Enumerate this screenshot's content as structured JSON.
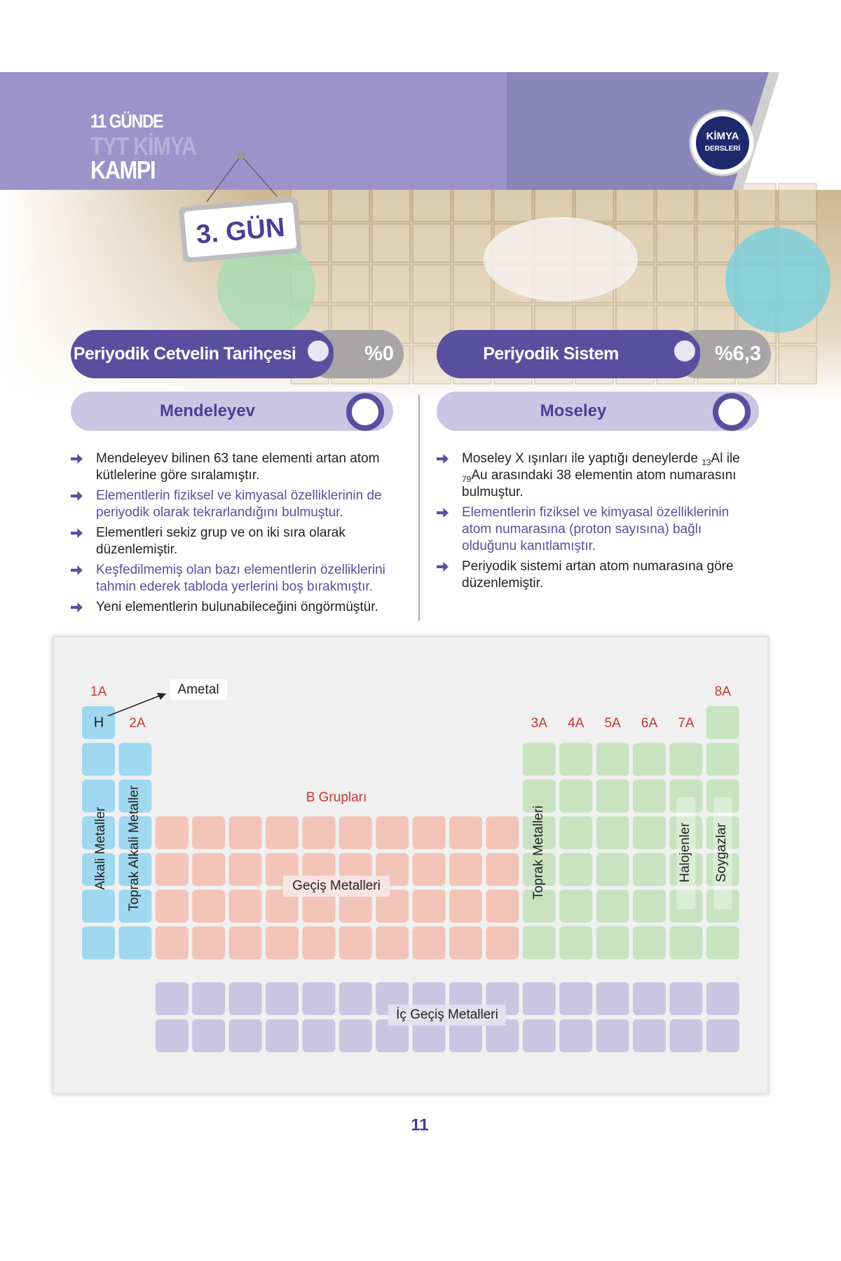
{
  "header": {
    "line1": "11 GÜNDE",
    "line2": "TYT KİMYA",
    "line3": "KAMPI",
    "day": "3. GÜN",
    "logo_top": "KİMYA",
    "logo_bottom": "DERSLERİ"
  },
  "left": {
    "title": "Periyodik Cetvelin Tarihçesi",
    "percent": "%0",
    "subtitle": "Mendeleyev",
    "bullets": [
      "Mendeleyev bilinen 63 tane elementi artan atom kütlelerine göre sıralamıştır.",
      "Elementlerin fiziksel ve kimyasal özelliklerinin de periyodik olarak tekrarlandığını bulmuştur.",
      "Elementleri sekiz grup ve on iki sıra olarak düzenlemiştir.",
      "Keşfedilmemiş olan bazı elementlerin özelliklerini tahmin ederek tabloda yerlerini boş bırakmıştır.",
      "Yeni elementlerin bulunabileceğini öngörmüştür."
    ]
  },
  "right": {
    "title": "Periyodik Sistem",
    "percent": "%6,3",
    "subtitle": "Moseley",
    "bullets": [
      [
        {
          "text": "Moseley X ışınları ile yaptığı deneylerde "
        },
        {
          "sub": "13"
        },
        {
          "text": "Al ile "
        },
        {
          "sub": "79"
        },
        {
          "text": "Au arasındaki 38 elementin atom numarasını bulmuştur."
        }
      ],
      "Elementlerin fiziksel ve kimyasal özelliklerinin atom numarasına (proton sayısına) bağlı olduğunu kanıtlamıştır.",
      "Periyodik sistemi artan atom numarasına göre düzenlemiştir."
    ]
  },
  "diagram": {
    "nonmetal": "Ametal",
    "hydrogen": "H",
    "groups_a": [
      "1A",
      "2A",
      "3A",
      "4A",
      "5A",
      "6A",
      "7A",
      "8A"
    ],
    "b_groups": "B Grupları",
    "alkali": "Alkali Metaller",
    "alkaline_earth": "Toprak Alkali Metaller",
    "transition": "Geçiş Metalleri",
    "earth": "Toprak Metalleri",
    "halogens": "Halojenler",
    "noble": "Soygazlar",
    "inner_transition": "İç Geçiş Metalleri"
  },
  "page_number": "11"
}
